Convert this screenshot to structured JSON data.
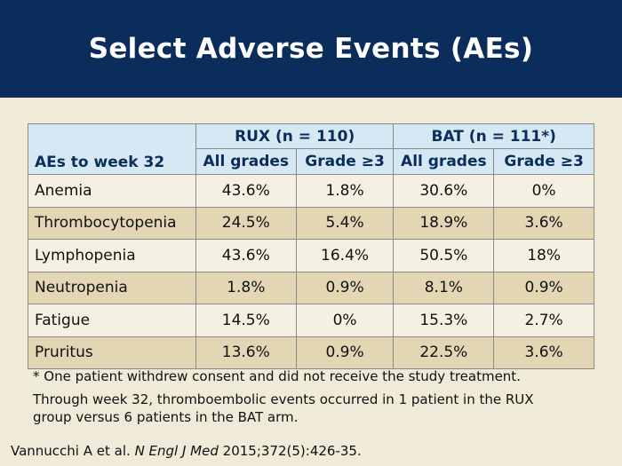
{
  "title": "Select Adverse Events (AEs)",
  "table": {
    "row_header": "AEs to week 32",
    "groups": [
      {
        "label": "RUX (n = 110)"
      },
      {
        "label": "BAT (n = 111*)"
      }
    ],
    "subheaders": [
      "All grades",
      "Grade ≥3",
      "All grades",
      "Grade ≥3"
    ],
    "rows": [
      {
        "label": "Anemia",
        "values": [
          "43.6%",
          "1.8%",
          "30.6%",
          "0%"
        ]
      },
      {
        "label": "Thrombocytopenia",
        "values": [
          "24.5%",
          "5.4%",
          "18.9%",
          "3.6%"
        ]
      },
      {
        "label": "Lymphopenia",
        "values": [
          "43.6%",
          "16.4%",
          "50.5%",
          "18%"
        ]
      },
      {
        "label": "Neutropenia",
        "values": [
          "1.8%",
          "0.9%",
          "8.1%",
          "0.9%"
        ]
      },
      {
        "label": "Fatigue",
        "values": [
          "14.5%",
          "0%",
          "15.3%",
          "2.7%"
        ]
      },
      {
        "label": "Pruritus",
        "values": [
          "13.6%",
          "0.9%",
          "22.5%",
          "3.6%"
        ]
      }
    ]
  },
  "footnote": "* One patient withdrew consent and did not receive the study treatment.",
  "note": "Through week 32, thromboembolic events occurred in 1 patient in the RUX group versus 6 patients in the BAT arm.",
  "citation": {
    "authors": "Vannucchi A et al.",
    "journal": "N Engl J Med",
    "details": "2015;372(5):426-35."
  },
  "colors": {
    "header_bg": "#0b2d5c",
    "page_bg": "#efebd8",
    "table_header_bg": "#d6e8f3",
    "row_light": "#f4f1e2",
    "row_dark": "#e2d6b4"
  }
}
